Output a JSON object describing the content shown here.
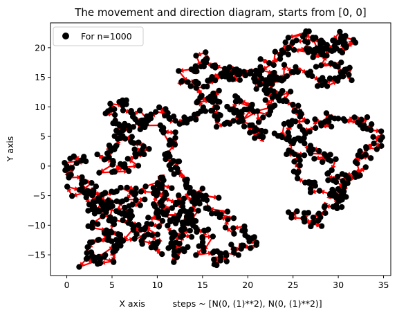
{
  "chart_data": {
    "type": "scatter",
    "title": "The movement and direction diagram, starts from [0, 0]",
    "xlabel": "X axis          steps ~ [N(0, (1)**2), N(0, (1)**2)]",
    "ylabel": "Y axis",
    "xlim": [
      -1.8,
      35.8
    ],
    "ylim": [
      -18.5,
      24.2
    ],
    "xticks": [
      0,
      5,
      10,
      15,
      20,
      25,
      30,
      35
    ],
    "yticks": [
      -15,
      -10,
      -5,
      0,
      5,
      10,
      15,
      20
    ],
    "legend": {
      "label": "For n=1000",
      "placement": "top-left"
    },
    "colors": {
      "points": "#000000",
      "arrows": "#ff0000"
    },
    "grid": false,
    "series": [
      {
        "name": "For n=1000",
        "marker": "circle",
        "waypoints": [
          [
            0,
            0
          ],
          [
            1.2,
            1.5
          ],
          [
            0.5,
            -1.5
          ],
          [
            2.2,
            -3
          ],
          [
            1.5,
            -4.8
          ],
          [
            3.2,
            -4
          ],
          [
            2.5,
            -6
          ],
          [
            4,
            -5
          ],
          [
            3,
            -8
          ],
          [
            5,
            -6
          ],
          [
            3.2,
            -10
          ],
          [
            4.5,
            -12
          ],
          [
            2.5,
            -14
          ],
          [
            3.8,
            -15.8
          ],
          [
            2,
            -16.5
          ],
          [
            5,
            -15
          ],
          [
            6,
            -13
          ],
          [
            4.5,
            -10
          ],
          [
            6.5,
            -8
          ],
          [
            5,
            -5
          ],
          [
            7.5,
            -4
          ],
          [
            8,
            -6.5
          ],
          [
            6.5,
            -9
          ],
          [
            8,
            -12
          ],
          [
            10,
            -14
          ],
          [
            9,
            -10
          ],
          [
            10.5,
            -7
          ],
          [
            9,
            -4
          ],
          [
            11,
            -2
          ],
          [
            10.5,
            -5
          ],
          [
            12,
            -8
          ],
          [
            11,
            -10.5
          ],
          [
            12.5,
            -13
          ],
          [
            11.8,
            -15
          ],
          [
            13,
            -12.5
          ],
          [
            13.5,
            -9.5
          ],
          [
            12.5,
            -6
          ],
          [
            14,
            -4.5
          ],
          [
            14.5,
            -7
          ],
          [
            13.5,
            -10
          ],
          [
            15.5,
            -11
          ],
          [
            15,
            -14
          ],
          [
            17,
            -15
          ],
          [
            16.5,
            -16.2
          ],
          [
            18.5,
            -14
          ],
          [
            20.5,
            -13
          ],
          [
            21,
            -12.7
          ],
          [
            19,
            -11
          ],
          [
            17.5,
            -9
          ],
          [
            16,
            -6
          ],
          [
            13.5,
            -4
          ],
          [
            12,
            -1
          ],
          [
            11,
            2
          ],
          [
            12,
            4.5
          ],
          [
            10,
            6
          ],
          [
            8,
            7
          ],
          [
            6,
            6
          ],
          [
            5,
            3
          ],
          [
            4.2,
            1.5
          ],
          [
            5.5,
            -1
          ],
          [
            7,
            1
          ],
          [
            8.5,
            3
          ],
          [
            7,
            5
          ],
          [
            5.5,
            7
          ],
          [
            4.5,
            9.5
          ],
          [
            6,
            11
          ],
          [
            7,
            8.5
          ],
          [
            9,
            8
          ],
          [
            10.5,
            9.5
          ],
          [
            12,
            8
          ],
          [
            13.5,
            7
          ],
          [
            14.5,
            9
          ],
          [
            15.5,
            11.5
          ],
          [
            17,
            12
          ],
          [
            16,
            9
          ],
          [
            17.5,
            7.5
          ],
          [
            19,
            8
          ],
          [
            20.5,
            9.5
          ],
          [
            19.5,
            11
          ],
          [
            18,
            9.5
          ],
          [
            20,
            7
          ],
          [
            21.5,
            5
          ],
          [
            21,
            8
          ],
          [
            22.5,
            10
          ],
          [
            23,
            12
          ],
          [
            21.5,
            14
          ],
          [
            20,
            16
          ],
          [
            18,
            15
          ],
          [
            16.5,
            16
          ],
          [
            15,
            18.5
          ],
          [
            14,
            16
          ],
          [
            13,
            14.5
          ],
          [
            15,
            13
          ],
          [
            16.5,
            14.5
          ],
          [
            18,
            16.5
          ],
          [
            19.5,
            15.5
          ],
          [
            21,
            16.5
          ],
          [
            22,
            14
          ],
          [
            23.5,
            15
          ],
          [
            25,
            16.5
          ],
          [
            27,
            15.5
          ],
          [
            28.5,
            14
          ],
          [
            30.5,
            15
          ],
          [
            31.5,
            16
          ],
          [
            29,
            17
          ],
          [
            27.5,
            19.5
          ],
          [
            26,
            22
          ],
          [
            28,
            21
          ],
          [
            29.5,
            19
          ],
          [
            31,
            20.5
          ],
          [
            32,
            21.5
          ],
          [
            30.5,
            22
          ],
          [
            29,
            20
          ],
          [
            27,
            19
          ],
          [
            25,
            21
          ],
          [
            24,
            19.5
          ],
          [
            23,
            18
          ],
          [
            22,
            16
          ],
          [
            23,
            13
          ],
          [
            24.5,
            11
          ],
          [
            25.5,
            8
          ],
          [
            23.5,
            6
          ],
          [
            24.5,
            4
          ],
          [
            26,
            5
          ],
          [
            27.5,
            7
          ],
          [
            29,
            8
          ],
          [
            30.5,
            7.5
          ],
          [
            32,
            8
          ],
          [
            33,
            7
          ],
          [
            34,
            5
          ],
          [
            33.5,
            3
          ],
          [
            32.5,
            1
          ],
          [
            32,
            -0.5
          ],
          [
            31,
            -2
          ],
          [
            30.5,
            -4
          ],
          [
            29,
            -5
          ],
          [
            28,
            -4.5
          ],
          [
            26,
            -2
          ],
          [
            25.5,
            0
          ],
          [
            25,
            2.5
          ],
          [
            26,
            4.5
          ],
          [
            27.5,
            3
          ],
          [
            28.5,
            1
          ],
          [
            29.5,
            -1
          ],
          [
            30.5,
            -3
          ],
          [
            31,
            -5
          ],
          [
            30,
            -6.5
          ],
          [
            28.5,
            -7
          ],
          [
            27.5,
            -9
          ],
          [
            27,
            -10
          ],
          [
            26,
            -8.5
          ],
          [
            25,
            -8
          ],
          [
            24.5,
            -7.8
          ]
        ]
      }
    ]
  }
}
